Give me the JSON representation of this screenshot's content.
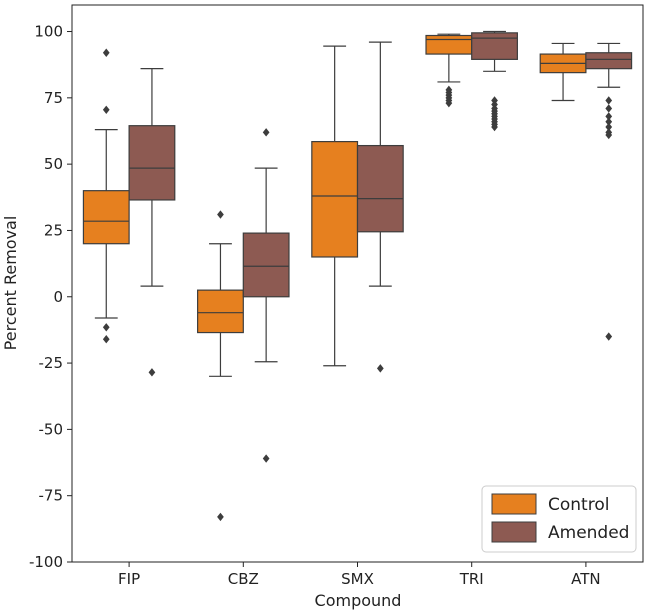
{
  "chart_data": {
    "type": "boxplot",
    "xlabel": "Compound",
    "ylabel": "Percent Removal",
    "ylim": [
      -100,
      110
    ],
    "yticks": [
      -100,
      -75,
      -50,
      -25,
      0,
      25,
      50,
      75,
      100
    ],
    "categories": [
      "FIP",
      "CBZ",
      "SMX",
      "TRI",
      "ATN"
    ],
    "legend_position": "bottom-right",
    "series": [
      {
        "name": "Control",
        "color": "#e6801f",
        "boxes": [
          {
            "whisker_low": -8,
            "q1": 20,
            "median": 28.5,
            "q3": 40,
            "whisker_high": 63,
            "outliers": [
              92,
              70.5,
              -11.5,
              -16
            ]
          },
          {
            "whisker_low": -30,
            "q1": -13.5,
            "median": -6,
            "q3": 2.5,
            "whisker_high": 20,
            "outliers": [
              31,
              -83
            ]
          },
          {
            "whisker_low": -26,
            "q1": 15,
            "median": 38,
            "q3": 58.5,
            "whisker_high": 94.5,
            "outliers": []
          },
          {
            "whisker_low": 81,
            "q1": 91.5,
            "median": 97,
            "q3": 98.5,
            "whisker_high": 99,
            "outliers": [
              78,
              77,
              76,
              75,
              74,
              73
            ]
          },
          {
            "whisker_low": 74,
            "q1": 84.5,
            "median": 88,
            "q3": 91.5,
            "whisker_high": 95.5,
            "outliers": []
          }
        ]
      },
      {
        "name": "Amended",
        "color": "#8d5a52",
        "boxes": [
          {
            "whisker_low": 4,
            "q1": 36.5,
            "median": 48.5,
            "q3": 64.5,
            "whisker_high": 86,
            "outliers": [
              -28.5
            ]
          },
          {
            "whisker_low": -24.5,
            "q1": 0,
            "median": 11.5,
            "q3": 24,
            "whisker_high": 48.5,
            "outliers": [
              62,
              -61
            ]
          },
          {
            "whisker_low": 4,
            "q1": 24.5,
            "median": 37,
            "q3": 57,
            "whisker_high": 96,
            "outliers": [
              -27
            ]
          },
          {
            "whisker_low": 85,
            "q1": 89.5,
            "median": 97.5,
            "q3": 99.5,
            "whisker_high": 100,
            "outliers": [
              74,
              72.5,
              71,
              70,
              69,
              68,
              67,
              66,
              65,
              64
            ]
          },
          {
            "whisker_low": 79,
            "q1": 86,
            "median": 89.5,
            "q3": 92,
            "whisker_high": 95.5,
            "outliers": [
              74,
              71,
              68,
              66,
              64,
              62,
              61,
              -15
            ]
          }
        ]
      }
    ]
  }
}
